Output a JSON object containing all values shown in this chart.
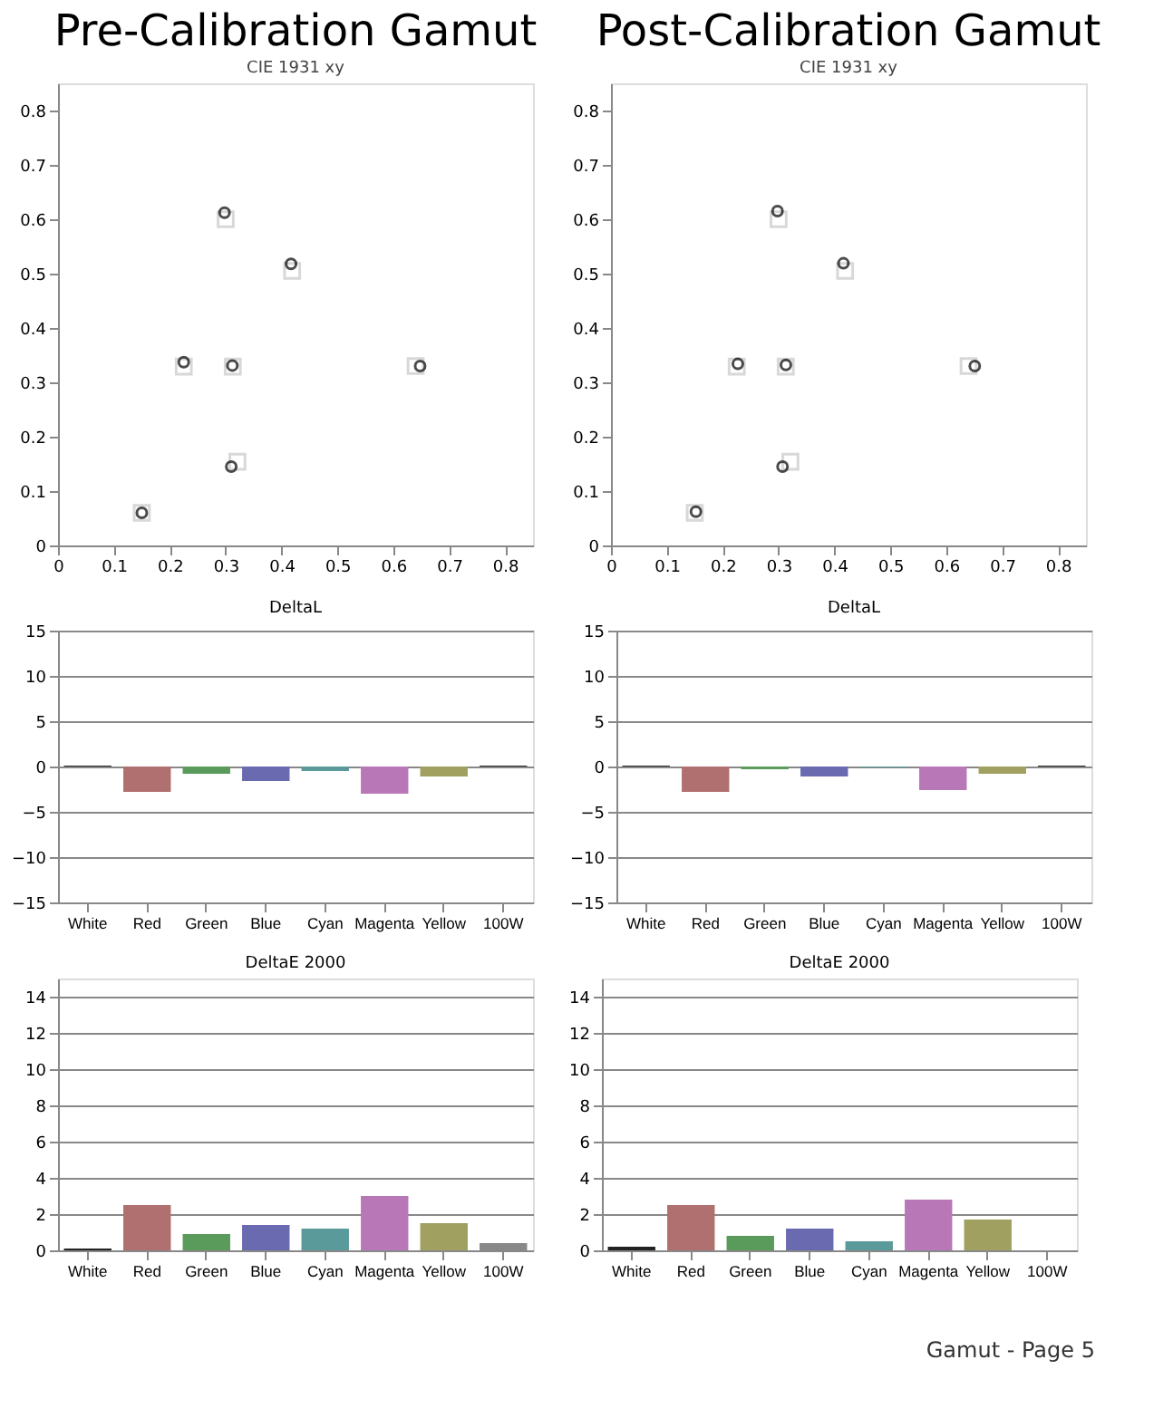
{
  "chart_data": [
    {
      "type": "scatter",
      "title": "Pre-Calibration Gamut",
      "subtitle": "CIE 1931 xy",
      "xlim": [
        0,
        0.85
      ],
      "xticks": [
        0,
        0.1,
        0.2,
        0.3,
        0.4,
        0.5,
        0.6,
        0.7,
        0.8
      ],
      "ylim": [
        0,
        0.85
      ],
      "yticks": [
        0,
        0.1,
        0.2,
        0.3,
        0.4,
        0.5,
        0.6,
        0.7,
        0.8
      ],
      "grid": false,
      "series": [
        {
          "color": "#c8c8c8",
          "marker": "square",
          "x": [
            0.3127,
            0.64,
            0.3,
            0.15,
            0.225,
            0.321,
            0.419
          ],
          "values": [
            0.329,
            0.33,
            0.6,
            0.06,
            0.329,
            0.154,
            0.505
          ]
        },
        {
          "color": "#000000",
          "marker": "circle",
          "x": [
            0.312,
            0.648,
            0.298,
            0.15,
            0.225,
            0.31,
            0.417
          ],
          "values": [
            0.331,
            0.33,
            0.612,
            0.06,
            0.337,
            0.145,
            0.518
          ]
        }
      ]
    },
    {
      "type": "scatter",
      "title": "Post-Calibration Gamut",
      "subtitle": "CIE 1931 xy",
      "xlim": [
        0,
        0.85
      ],
      "xticks": [
        0,
        0.1,
        0.2,
        0.3,
        0.4,
        0.5,
        0.6,
        0.7,
        0.8
      ],
      "ylim": [
        0,
        0.85
      ],
      "yticks": [
        0,
        0.1,
        0.2,
        0.3,
        0.4,
        0.5,
        0.6,
        0.7,
        0.8
      ],
      "grid": false,
      "series": [
        {
          "color": "#c8c8c8",
          "marker": "square",
          "x": [
            0.3127,
            0.64,
            0.3,
            0.15,
            0.225,
            0.321,
            0.419
          ],
          "values": [
            0.329,
            0.33,
            0.6,
            0.06,
            0.329,
            0.154,
            0.505
          ]
        },
        {
          "color": "#000000",
          "marker": "circle",
          "x": [
            0.313,
            0.651,
            0.298,
            0.152,
            0.227,
            0.307,
            0.416
          ],
          "values": [
            0.332,
            0.33,
            0.615,
            0.062,
            0.334,
            0.145,
            0.519
          ]
        }
      ]
    },
    {
      "type": "bar",
      "title": "DeltaL",
      "categories": [
        "White",
        "Red",
        "Green",
        "Blue",
        "Cyan",
        "Magenta",
        "Yellow",
        "100W"
      ],
      "values": [
        0.1,
        -2.8,
        -0.8,
        -1.6,
        -0.5,
        -3.0,
        -1.1,
        0.1
      ],
      "colors": [
        "#222222",
        "#b07070",
        "#5a9a5a",
        "#6a6ab0",
        "#5a9a9a",
        "#b878b8",
        "#a0a060",
        "#222222"
      ],
      "ylim": [
        -15,
        15
      ],
      "yticks": [
        -15,
        -10,
        -5,
        0,
        5,
        10,
        15
      ],
      "grid": "y"
    },
    {
      "type": "bar",
      "title": "DeltaL",
      "categories": [
        "White",
        "Red",
        "Green",
        "Blue",
        "Cyan",
        "Magenta",
        "Yellow",
        "100W"
      ],
      "values": [
        0.1,
        -2.8,
        -0.3,
        -1.1,
        -0.1,
        -2.6,
        -0.8,
        0.1
      ],
      "colors": [
        "#222222",
        "#b07070",
        "#5a9a5a",
        "#6a6ab0",
        "#5a9a9a",
        "#b878b8",
        "#a0a060",
        "#222222"
      ],
      "ylim": [
        -15,
        15
      ],
      "yticks": [
        -15,
        -10,
        -5,
        0,
        5,
        10,
        15
      ],
      "grid": "y"
    },
    {
      "type": "bar",
      "title": "DeltaE 2000",
      "categories": [
        "White",
        "Red",
        "Green",
        "Blue",
        "Cyan",
        "Magenta",
        "Yellow",
        "100W"
      ],
      "values": [
        0.1,
        2.5,
        0.9,
        1.4,
        1.2,
        3.0,
        1.5,
        0.4
      ],
      "colors": [
        "#222222",
        "#b07070",
        "#5a9a5a",
        "#6a6ab0",
        "#5a9a9a",
        "#b878b8",
        "#a0a060",
        "#888888"
      ],
      "ylim": [
        0,
        15
      ],
      "yticks": [
        0,
        2,
        4,
        6,
        8,
        10,
        12,
        14
      ],
      "grid": "y"
    },
    {
      "type": "bar",
      "title": "DeltaE 2000",
      "categories": [
        "White",
        "Red",
        "Green",
        "Blue",
        "Cyan",
        "Magenta",
        "Yellow",
        "100W"
      ],
      "values": [
        0.2,
        2.5,
        0.8,
        1.2,
        0.5,
        2.8,
        1.7,
        0
      ],
      "colors": [
        "#222222",
        "#b07070",
        "#5a9a5a",
        "#6a6ab0",
        "#5a9a9a",
        "#b878b8",
        "#a0a060",
        "#888888"
      ],
      "ylim": [
        0,
        15
      ],
      "yticks": [
        0,
        2,
        4,
        6,
        8,
        10,
        12,
        14
      ],
      "grid": "y",
      "annotations": [
        "Gamut - Page 5"
      ]
    }
  ]
}
